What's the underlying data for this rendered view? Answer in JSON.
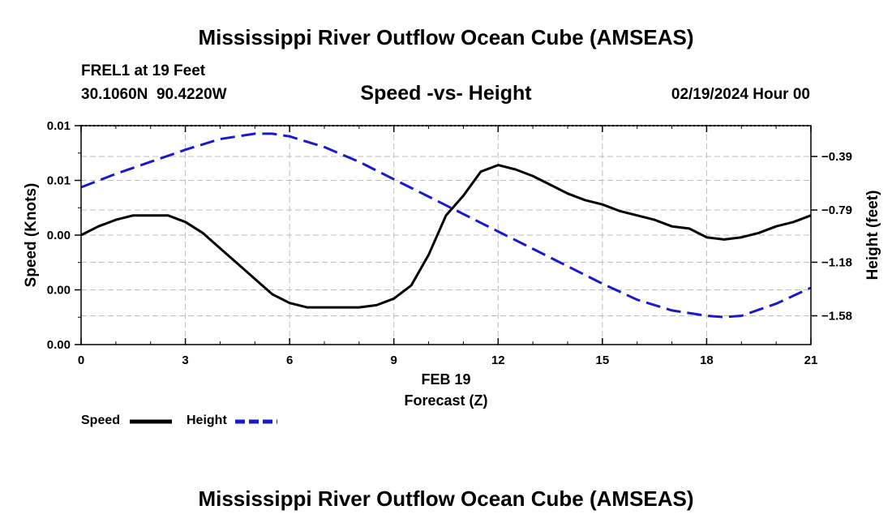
{
  "header": {
    "title": "Mississippi River Outflow Ocean Cube (AMSEAS)",
    "station": "FREL1 at 19 Feet",
    "coords": "30.1060N  90.4220W",
    "datetime": "02/19/2024 Hour 00"
  },
  "footer": {
    "title": "Mississippi River Outflow Ocean Cube (AMSEAS)"
  },
  "legend": {
    "speed_label": "Speed",
    "height_label": "Height"
  },
  "colors": {
    "speed": "#000000",
    "height": "#1a1acc",
    "grid": "#bdbdbd"
  },
  "chart_data": {
    "type": "line",
    "title": "Speed -vs- Height",
    "xlabel": "Forecast (Z)",
    "xdate": "FEB 19",
    "ylabel_left": "Speed (Knots)",
    "ylabel_right": "Height (feet)",
    "xlim": [
      0,
      21
    ],
    "x_ticks": [
      0,
      3,
      6,
      9,
      12,
      15,
      18,
      21
    ],
    "x_tick_labels": [
      "0",
      "3",
      "6",
      "9",
      "12",
      "15",
      "18",
      "21"
    ],
    "ylim_left": [
      0,
      0.01
    ],
    "y_left_ticks": [
      0,
      0.0025,
      0.005,
      0.0075,
      0.01
    ],
    "y_left_tick_labels": [
      "0.00",
      "0.00",
      "0.00",
      "0.01",
      "0.01"
    ],
    "ylim_right": [
      -1.795,
      -0.16
    ],
    "y_right_ticks": [
      -0.39,
      -0.79,
      -1.18,
      -1.58
    ],
    "y_right_tick_labels": [
      "-0.39",
      "-0.79",
      "-1.18",
      "-1.58"
    ],
    "series": [
      {
        "name": "Speed",
        "axis": "left",
        "style": "solid",
        "x": [
          0,
          0.5,
          1,
          1.5,
          2,
          2.5,
          3,
          3.5,
          4,
          4.5,
          5,
          5.5,
          6,
          6.5,
          7,
          7.5,
          8,
          8.5,
          9,
          9.5,
          10,
          10.5,
          11,
          11.5,
          12,
          12.5,
          13,
          13.5,
          14,
          14.5,
          15,
          15.5,
          16,
          16.5,
          17,
          17.5,
          18,
          18.5,
          19,
          19.5,
          20,
          20.5,
          21
        ],
        "values": [
          0.005,
          0.0054,
          0.0057,
          0.0059,
          0.0059,
          0.0059,
          0.0056,
          0.0051,
          0.0044,
          0.0037,
          0.003,
          0.0023,
          0.0019,
          0.0017,
          0.0017,
          0.0017,
          0.0017,
          0.0018,
          0.0021,
          0.0027,
          0.0041,
          0.0059,
          0.0068,
          0.0079,
          0.0082,
          0.008,
          0.0077,
          0.0073,
          0.0069,
          0.0066,
          0.0064,
          0.0061,
          0.0059,
          0.0057,
          0.0054,
          0.0053,
          0.0049,
          0.0048,
          0.0049,
          0.0051,
          0.0054,
          0.0056,
          0.0059
        ]
      },
      {
        "name": "Height",
        "axis": "right",
        "style": "dashed",
        "x": [
          0,
          1,
          2,
          3,
          4,
          5,
          5.5,
          6,
          7,
          8,
          9,
          10,
          11,
          12,
          13,
          14,
          15,
          16,
          17,
          18,
          18.5,
          19,
          20,
          21
        ],
        "values": [
          -0.62,
          -0.52,
          -0.43,
          -0.34,
          -0.26,
          -0.22,
          -0.22,
          -0.24,
          -0.32,
          -0.43,
          -0.56,
          -0.69,
          -0.82,
          -0.95,
          -1.08,
          -1.21,
          -1.34,
          -1.46,
          -1.54,
          -1.58,
          -1.59,
          -1.58,
          -1.49,
          -1.37
        ]
      }
    ]
  }
}
